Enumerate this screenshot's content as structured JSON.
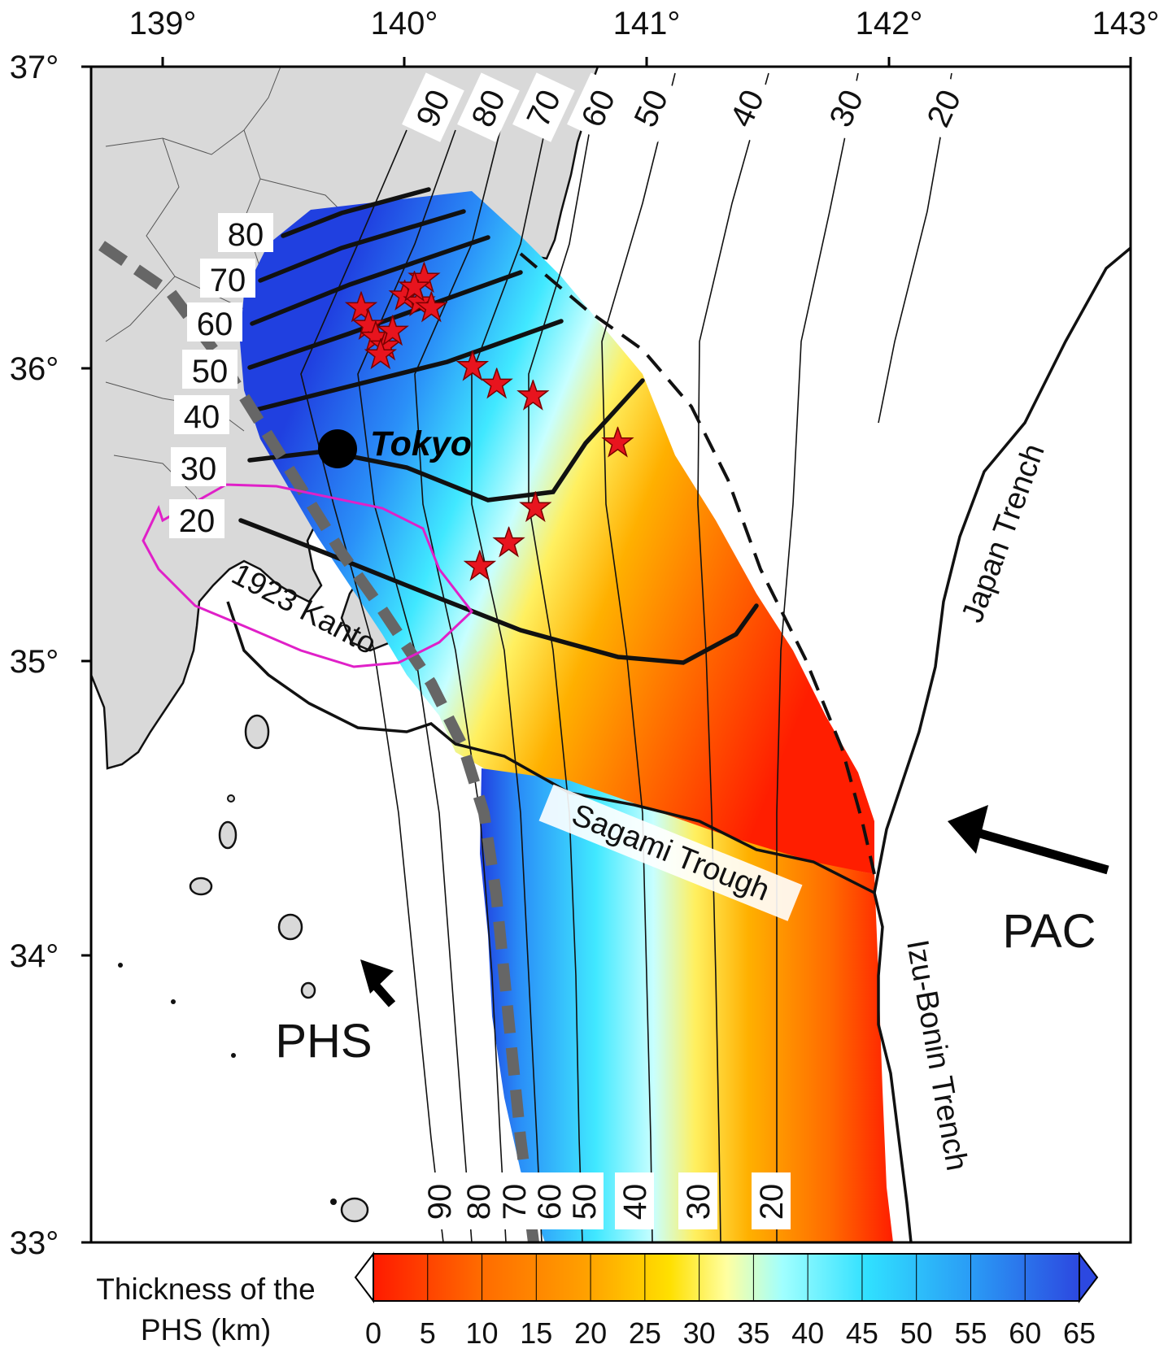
{
  "axes": {
    "lon_ticks": [
      "139°",
      "140°",
      "141°",
      "142°",
      "143°"
    ],
    "lat_ticks": [
      "37°",
      "36°",
      "35°",
      "34°",
      "33°"
    ]
  },
  "map": {
    "lon_range": [
      138.7,
      143.0
    ],
    "lat_range": [
      33.0,
      37.0
    ],
    "land_color": "#d9d9d9",
    "contour_labels_top": [
      "90",
      "80",
      "70",
      "60",
      "50",
      "40",
      "30",
      "20"
    ],
    "contour_labels_bottom": [
      "90",
      "80",
      "70",
      "60",
      "50",
      "40",
      "30",
      "20"
    ],
    "phs_depth_labels": [
      "80",
      "70",
      "60",
      "50",
      "40",
      "30",
      "20"
    ],
    "city": {
      "name": "Tokyo",
      "lon": 139.69,
      "lat": 35.69
    },
    "earthquake_region_label": "1923 Kanto",
    "earthquake_region_color": "#e020c8",
    "trough_label": "Sagami Trough",
    "japan_trench_label": "Japan Trench",
    "izu_bonin_label": "Izu-Bonin Trench",
    "plate_labels": {
      "pac": "PAC",
      "phs": "PHS"
    },
    "star_color": "#e8141e",
    "stars": [
      {
        "lon": 139.82,
        "lat": 36.18
      },
      {
        "lon": 139.85,
        "lat": 36.12
      },
      {
        "lon": 139.88,
        "lat": 36.08
      },
      {
        "lon": 139.92,
        "lat": 36.05
      },
      {
        "lon": 139.95,
        "lat": 36.1
      },
      {
        "lon": 139.9,
        "lat": 36.02
      },
      {
        "lon": 140.0,
        "lat": 36.22
      },
      {
        "lon": 140.06,
        "lat": 36.2
      },
      {
        "lon": 140.08,
        "lat": 36.28
      },
      {
        "lon": 140.11,
        "lat": 36.18
      },
      {
        "lon": 140.04,
        "lat": 36.25
      },
      {
        "lon": 140.28,
        "lat": 35.98
      },
      {
        "lon": 140.38,
        "lat": 35.92
      },
      {
        "lon": 140.53,
        "lat": 35.88
      },
      {
        "lon": 140.88,
        "lat": 35.72
      },
      {
        "lon": 140.54,
        "lat": 35.5
      },
      {
        "lon": 140.43,
        "lat": 35.38
      },
      {
        "lon": 140.31,
        "lat": 35.3
      }
    ]
  },
  "colorbar": {
    "title_line1": "Thickness of the",
    "title_line2": "PHS (km)",
    "ticks": [
      "0",
      "5",
      "10",
      "15",
      "20",
      "25",
      "30",
      "35",
      "40",
      "45",
      "50",
      "55",
      "60",
      "65"
    ],
    "colors": [
      "#ff1a00",
      "#ff5a00",
      "#ff8c00",
      "#ffb400",
      "#ffe000",
      "#ffff80",
      "#c0ffff",
      "#40f0ff",
      "#20c8ff",
      "#2ea0f8",
      "#3070f0",
      "#2c48e0"
    ]
  }
}
